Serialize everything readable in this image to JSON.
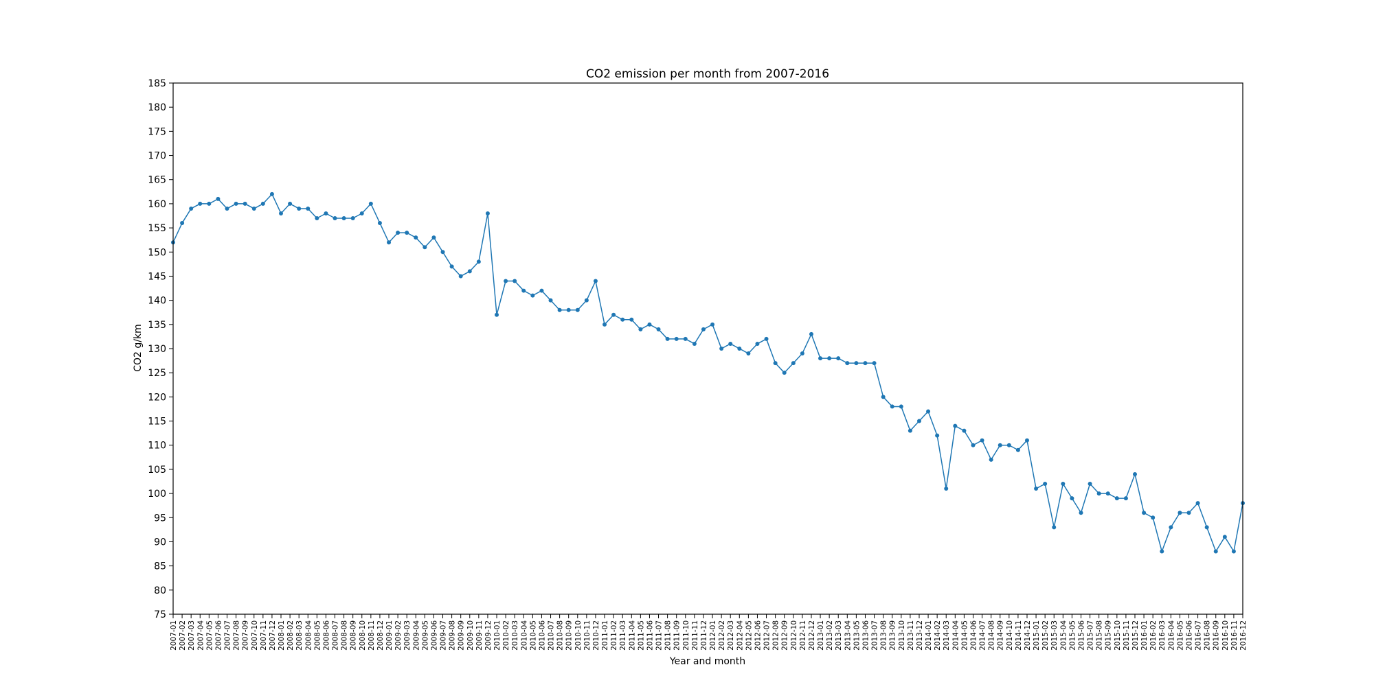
{
  "chart_data": {
    "type": "line",
    "title": "CO2 emission per month from 2007-2016",
    "xlabel": "Year and month",
    "ylabel": "CO2 g/km",
    "ylim": [
      75,
      185
    ],
    "yticks": [
      75,
      80,
      85,
      90,
      95,
      100,
      105,
      110,
      115,
      120,
      125,
      130,
      135,
      140,
      145,
      150,
      155,
      160,
      165,
      170,
      175,
      180,
      185
    ],
    "grid": false,
    "legend": "none",
    "marker": "circle",
    "color": "#1f77b4",
    "categories": [
      "2007-01",
      "2007-02",
      "2007-03",
      "2007-04",
      "2007-05",
      "2007-06",
      "2007-07",
      "2007-08",
      "2007-09",
      "2007-10",
      "2007-11",
      "2007-12",
      "2008-01",
      "2008-02",
      "2008-03",
      "2008-04",
      "2008-05",
      "2008-06",
      "2008-07",
      "2008-08",
      "2008-09",
      "2008-10",
      "2008-11",
      "2008-12",
      "2009-01",
      "2009-02",
      "2009-03",
      "2009-04",
      "2009-05",
      "2009-06",
      "2009-07",
      "2009-08",
      "2009-09",
      "2009-10",
      "2009-11",
      "2009-12",
      "2010-01",
      "2010-02",
      "2010-03",
      "2010-04",
      "2010-05",
      "2010-06",
      "2010-07",
      "2010-08",
      "2010-09",
      "2010-10",
      "2010-11",
      "2010-12",
      "2011-01",
      "2011-02",
      "2011-03",
      "2011-04",
      "2011-05",
      "2011-06",
      "2011-07",
      "2011-08",
      "2011-09",
      "2011-10",
      "2011-11",
      "2011-12",
      "2012-01",
      "2012-02",
      "2012-03",
      "2012-04",
      "2012-05",
      "2012-06",
      "2012-07",
      "2012-08",
      "2012-09",
      "2012-10",
      "2012-11",
      "2012-12",
      "2013-01",
      "2013-02",
      "2013-03",
      "2013-04",
      "2013-05",
      "2013-06",
      "2013-07",
      "2013-08",
      "2013-09",
      "2013-10",
      "2013-11",
      "2013-12",
      "2014-01",
      "2014-02",
      "2014-03",
      "2014-04",
      "2014-05",
      "2014-06",
      "2014-07",
      "2014-08",
      "2014-09",
      "2014-10",
      "2014-11",
      "2014-12",
      "2015-01",
      "2015-02",
      "2015-03",
      "2015-04",
      "2015-05",
      "2015-06",
      "2015-07",
      "2015-08",
      "2015-09",
      "2015-10",
      "2015-11",
      "2015-12",
      "2016-01",
      "2016-02",
      "2016-03",
      "2016-04",
      "2016-05",
      "2016-06",
      "2016-07",
      "2016-08",
      "2016-09",
      "2016-10",
      "2016-11",
      "2016-12"
    ],
    "values": [
      152,
      156,
      159,
      160,
      160,
      161,
      159,
      160,
      160,
      159,
      160,
      162,
      158,
      160,
      159,
      159,
      157,
      158,
      157,
      157,
      157,
      158,
      160,
      156,
      152,
      154,
      154,
      153,
      151,
      153,
      150,
      147,
      145,
      146,
      148,
      158,
      137,
      144,
      144,
      142,
      141,
      142,
      140,
      138,
      138,
      138,
      140,
      144,
      135,
      137,
      136,
      136,
      134,
      135,
      134,
      132,
      132,
      132,
      131,
      134,
      135,
      130,
      131,
      130,
      129,
      131,
      132,
      127,
      125,
      127,
      129,
      133,
      128,
      128,
      128,
      127,
      127,
      127,
      127,
      120,
      118,
      118,
      113,
      115,
      117,
      112,
      101,
      114,
      113,
      110,
      111,
      107,
      110,
      110,
      109,
      111,
      101,
      102,
      93,
      102,
      99,
      96,
      102,
      100,
      100,
      99,
      99,
      104,
      96,
      95,
      88,
      93,
      96,
      96,
      98,
      93,
      88,
      91,
      88,
      98
    ]
  }
}
